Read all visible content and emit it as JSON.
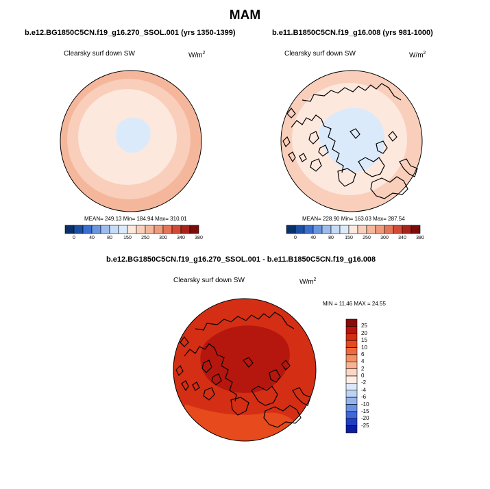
{
  "figure": {
    "title": "MAM",
    "panels": [
      {
        "case": "b.e12.BG1850C5CN.f19_g16.270_SSOL.001 (yrs 1350-1399)",
        "variable": "Clearsky surf down SW",
        "units_base": "W/m",
        "units_exp": "2",
        "stats": "MEAN= 249.13  Min= 184.94  Max= 310.01"
      },
      {
        "case": "b.e11.B1850C5CN.f19_g16.008 (yrs 981-1000)",
        "variable": "Clearsky surf down SW",
        "units_base": "W/m",
        "units_exp": "2",
        "stats": "MEAN= 228.90  Min= 163.03  Max= 287.54"
      }
    ],
    "diff_panel": {
      "case": "b.e12.BG1850C5CN.f19_g16.270_SSOL.001 - b.e11.B1850C5CN.f19_g16.008",
      "variable": "Clearsky surf down SW",
      "units_base": "W/m",
      "units_exp": "2",
      "stats": "MIN = 11.46 MAX =  24.55"
    },
    "colorbar_top": {
      "labels": [
        "0",
        "40",
        "80",
        "150",
        "250",
        "300",
        "340",
        "380"
      ],
      "colors": [
        "#08306b",
        "#1a4fa3",
        "#3a6fd0",
        "#6a96e0",
        "#9dbcec",
        "#c6dbf5",
        "#dbeafa",
        "#fde8de",
        "#f9cfbb",
        "#f5b79c",
        "#ef9a7c",
        "#e67558",
        "#d14a35",
        "#a8231a",
        "#7a0c0c"
      ]
    },
    "colorbar_diff": {
      "labels": [
        "25",
        "20",
        "15",
        "10",
        "6",
        "4",
        "2",
        "0",
        "-2",
        "-4",
        "-6",
        "-10",
        "-15",
        "-20",
        "-25"
      ],
      "colors": [
        "#8b0a0a",
        "#b5170f",
        "#d42e14",
        "#e64a1d",
        "#f0693c",
        "#f48f66",
        "#f7b596",
        "#fbd8c4",
        "#fdeee6",
        "#dde9f8",
        "#bcd3f4",
        "#93b4ec",
        "#6a92e2",
        "#4068da",
        "#1f3fc7",
        "#0a1f9e"
      ]
    },
    "map_fill": {
      "ssol_rim": "#f5b79c",
      "ssol_ring": "#f9cfbb",
      "ssol_inner": "#fde8de",
      "ssol_pole": "#dbeafa",
      "base_rim": "#f9cfbb",
      "base_ring": "#fde8de",
      "base_pole": "#dbeafa",
      "diff_main": "#d42e14",
      "diff_dark": "#b5170f",
      "diff_light": "#e64a1d"
    }
  }
}
